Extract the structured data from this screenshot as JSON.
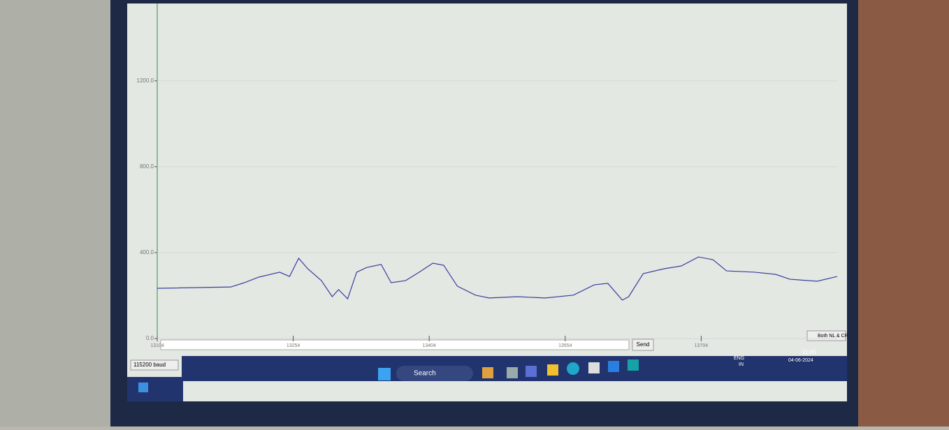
{
  "chart_data": {
    "type": "line",
    "x": [
      13104,
      13185,
      13200,
      13216,
      13239,
      13250,
      13260,
      13270,
      13285,
      13297,
      13304,
      13314,
      13324,
      13335,
      13351,
      13362,
      13378,
      13393,
      13408,
      13420,
      13435,
      13455,
      13470,
      13501,
      13532,
      13563,
      13586,
      13601,
      13617,
      13624,
      13640,
      13663,
      13682,
      13701,
      13717,
      13732,
      13763,
      13786,
      13802,
      13832,
      13854
    ],
    "series": [
      {
        "color": "#3a3f9e",
        "values": [
          234,
          240,
          260,
          286,
          309,
          289,
          374,
          325,
          270,
          195,
          228,
          185,
          309,
          331,
          345,
          260,
          270,
          309,
          351,
          341,
          244,
          202,
          189,
          195,
          189,
          202,
          250,
          257,
          179,
          195,
          302,
          325,
          338,
          380,
          367,
          315,
          309,
          299,
          276,
          267,
          289
        ]
      }
    ],
    "xlim": [
      13104,
      13854
    ],
    "xticks": [
      13104,
      13254,
      13404,
      13554,
      13704
    ],
    "ylim": [
      0,
      1560
    ],
    "yticks": [
      {
        "value": 0,
        "label": "0.0"
      },
      {
        "value": 400,
        "label": "400.0"
      },
      {
        "value": 800,
        "label": "800.0"
      },
      {
        "value": 1200,
        "label": "1200.0"
      }
    ],
    "grid": true
  },
  "ui": {
    "baud": "115200 baud",
    "send": "Send",
    "line_ending": "Both NL & CR",
    "search": "Search",
    "tray": {
      "lang": "ENG",
      "region": "IN",
      "time": "11:05",
      "date": "04-06-2024"
    }
  }
}
